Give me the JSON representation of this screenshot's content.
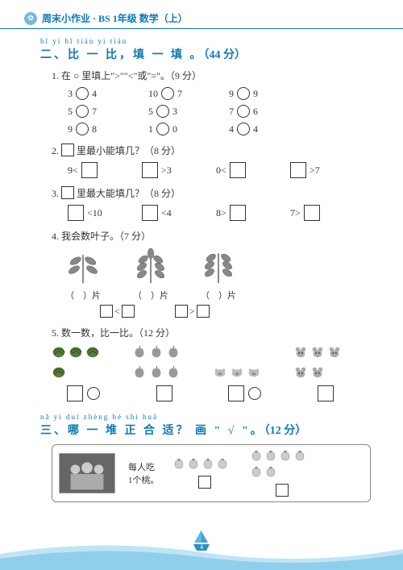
{
  "header": {
    "brand": "周末小作业",
    "grade": "BS 1年级 数学（上）"
  },
  "section2": {
    "pinyin": "bǐ yi bǐ   tián yi tián",
    "title": "二、比 一 比，填 一 填 。",
    "points": "（44 分）",
    "q1": {
      "title": "1. 在 ○ 里填上\">\"\"<\"或\"=\"。（9 分）",
      "rows": [
        [
          [
            "3",
            "4"
          ],
          [
            "10",
            "7"
          ],
          [
            "9",
            "9"
          ]
        ],
        [
          [
            "5",
            "7"
          ],
          [
            "5",
            "3"
          ],
          [
            "7",
            "6"
          ]
        ],
        [
          [
            "9",
            "8"
          ],
          [
            "1",
            "0"
          ],
          [
            "4",
            "4"
          ]
        ]
      ]
    },
    "q2": {
      "title": "2. □ 里最小能填几？（8 分）",
      "items": [
        {
          "left": "9<",
          "right": ""
        },
        {
          "left": "",
          "right": ">3"
        },
        {
          "left": "0<",
          "right": ""
        },
        {
          "left": "",
          "right": ">7"
        }
      ]
    },
    "q3": {
      "title": "3. □ 里最大能填几？（8 分）",
      "items": [
        {
          "left": "",
          "right": "<10"
        },
        {
          "left": "",
          "right": "<4"
        },
        {
          "left": "8>",
          "right": ""
        },
        {
          "left": "7>",
          "right": ""
        }
      ]
    },
    "q4": {
      "title": "4. 我会数叶子。（7 分）",
      "label_tpl": "（　）片",
      "cmp": [
        "<",
        ">"
      ]
    },
    "q5": {
      "title": "5. 数一数，比一比。（12 分）",
      "groups": [
        {
          "type": "melon",
          "count": 4,
          "color": "#5a7a3a"
        },
        {
          "type": "apple",
          "count": 6,
          "color": "#888"
        },
        {
          "type": "pig",
          "count": 3,
          "color": "#aaa"
        },
        {
          "type": "mouse",
          "count": 5,
          "color": "#999"
        }
      ]
    }
  },
  "section3": {
    "pinyin": "nǎ yì duī zhèng hé shì    huà",
    "title": "三、哪 一 堆  正  合 适？ 画 \" √ \"。",
    "points": "（12 分）",
    "caption": "每人吃\n1个桃。",
    "pile1": 4,
    "pile2": 6
  },
  "page_number": "4"
}
